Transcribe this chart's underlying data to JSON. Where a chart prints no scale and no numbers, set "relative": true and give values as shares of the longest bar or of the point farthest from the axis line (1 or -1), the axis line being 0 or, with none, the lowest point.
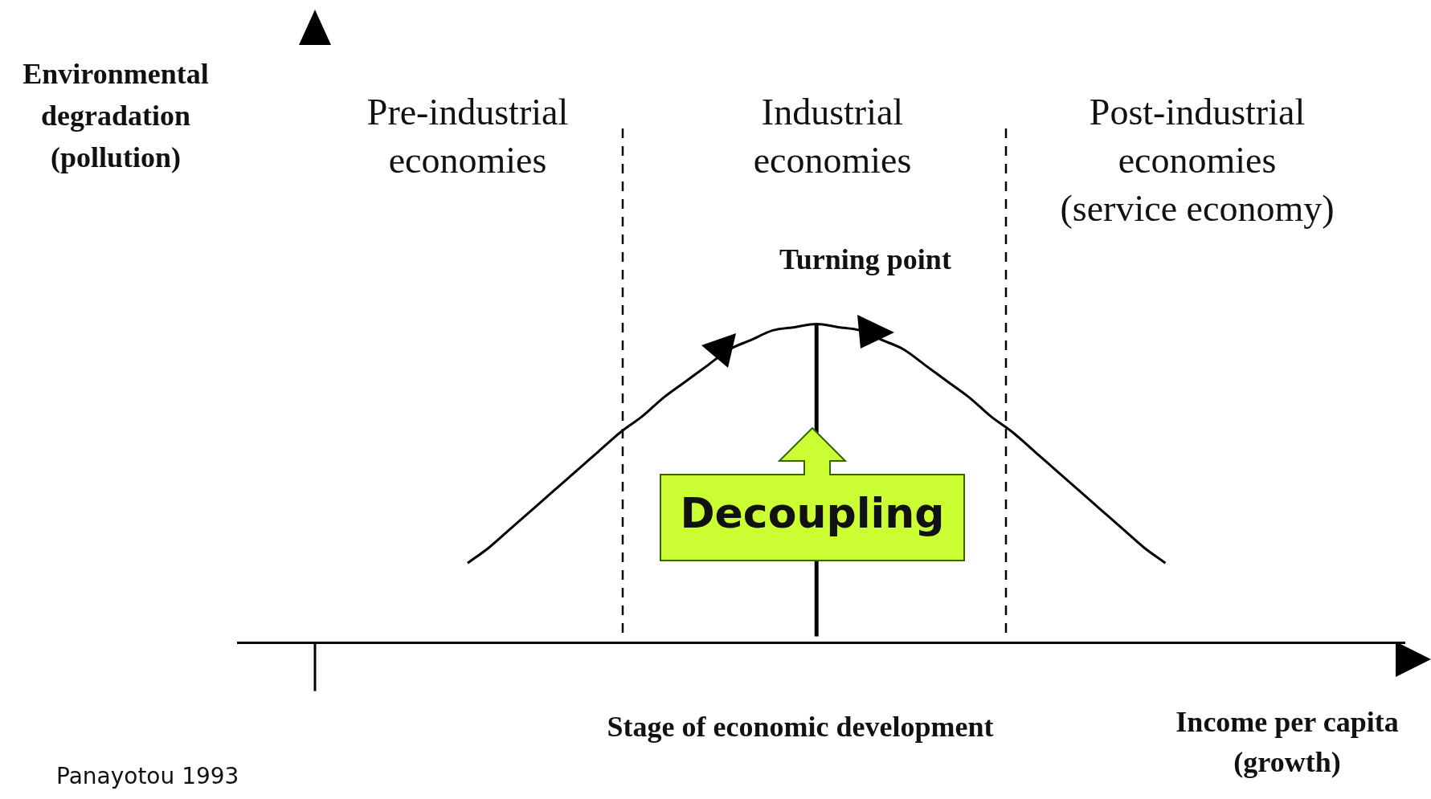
{
  "chart_data": {
    "type": "line",
    "relative": true,
    "categories": [
      null,
      null,
      null,
      null,
      null,
      null,
      null,
      null,
      null,
      null,
      null,
      null,
      null,
      null,
      null,
      null,
      null,
      null,
      null,
      null,
      null,
      null,
      null,
      null,
      null,
      null,
      null,
      null,
      null,
      null,
      null,
      null,
      null,
      null,
      null,
      null,
      null,
      null,
      null,
      null,
      null,
      null,
      null,
      null,
      null,
      null,
      null,
      null,
      null,
      null,
      null
    ],
    "series": [
      {
        "color": "#000000",
        "values": [
          null,
          null,
          null,
          null,
          null,
          null,
          null,
          0.25,
          0.3,
          0.36,
          0.42,
          0.48,
          0.54,
          0.6,
          0.66,
          0.71,
          0.77,
          0.82,
          0.87,
          0.92,
          0.95,
          0.98,
          0.99,
          1,
          0.99,
          0.98,
          0.95,
          0.92,
          0.87,
          0.82,
          0.77,
          0.71,
          0.66,
          0.6,
          0.54,
          0.48,
          0.42,
          0.36,
          0.3,
          0.25,
          null,
          null,
          null,
          null,
          null,
          null,
          null,
          null,
          null,
          null,
          null
        ]
      }
    ],
    "marker": "none",
    "line_style": "solid",
    "xlabel": "Income per capita\n(growth)",
    "annotations": [
      "Environmental\ndegradation\n(pollution)",
      "Pre-industrial\neconomies",
      "Industrial\neconomies",
      "Post-industrial\neconomies\n(service economy)",
      "Turning  point",
      "Stage of economic development",
      "Decoupling",
      "Panayotou 1993"
    ]
  }
}
